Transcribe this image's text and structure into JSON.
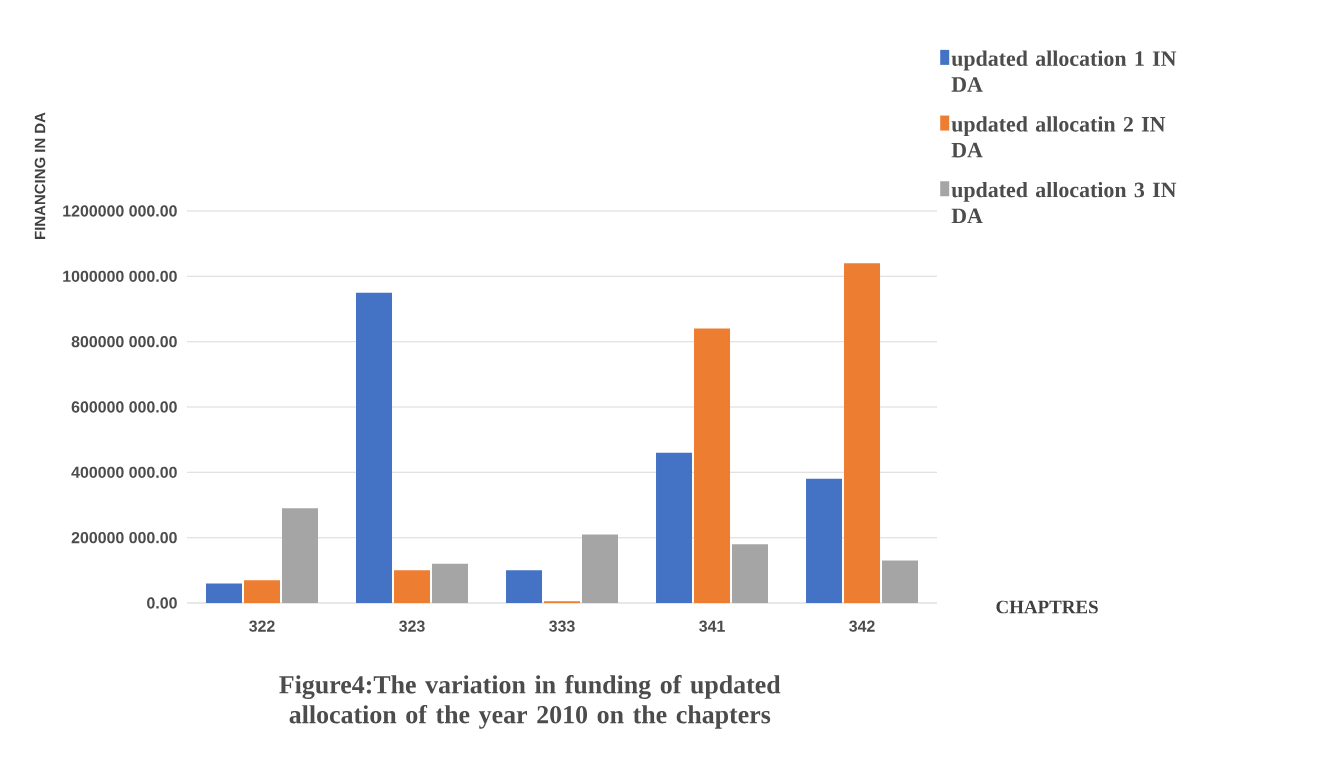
{
  "chart_data": {
    "type": "bar",
    "title": "Figure4:The variation in funding of updated allocation of the year 2010 on the chapters",
    "xlabel": "CHAPTRES",
    "ylabel": "FINANCING  IN DA",
    "categories": [
      "322",
      "323",
      "333",
      "341",
      "342"
    ],
    "series": [
      {
        "name": "updated allocation 1 IN DA",
        "color": "#4472c4",
        "values": [
          60000000,
          950000000,
          100000000,
          460000000,
          380000000
        ]
      },
      {
        "name": "updated allocatin 2 IN DA",
        "color": "#ed7d31",
        "values": [
          70000000,
          100000000,
          5000000,
          840000000,
          1040000000
        ]
      },
      {
        "name": "updated allocation 3 IN DA",
        "color": "#a5a5a5",
        "values": [
          290000000,
          120000000,
          210000000,
          180000000,
          130000000
        ]
      }
    ],
    "ylim": [
      0,
      1200000000
    ],
    "yticks": [
      {
        "value": 0,
        "label": "0.00"
      },
      {
        "value": 200000000,
        "label": "200000 000.00"
      },
      {
        "value": 400000000,
        "label": "400000 000.00"
      },
      {
        "value": 600000000,
        "label": "600000 000.00"
      },
      {
        "value": 800000000,
        "label": "800000 000.00"
      },
      {
        "value": 1000000000,
        "label": "1000000 000.00"
      },
      {
        "value": 1200000000,
        "label": "1200000 000.00"
      }
    ],
    "grid": "y",
    "legend": "top right"
  }
}
